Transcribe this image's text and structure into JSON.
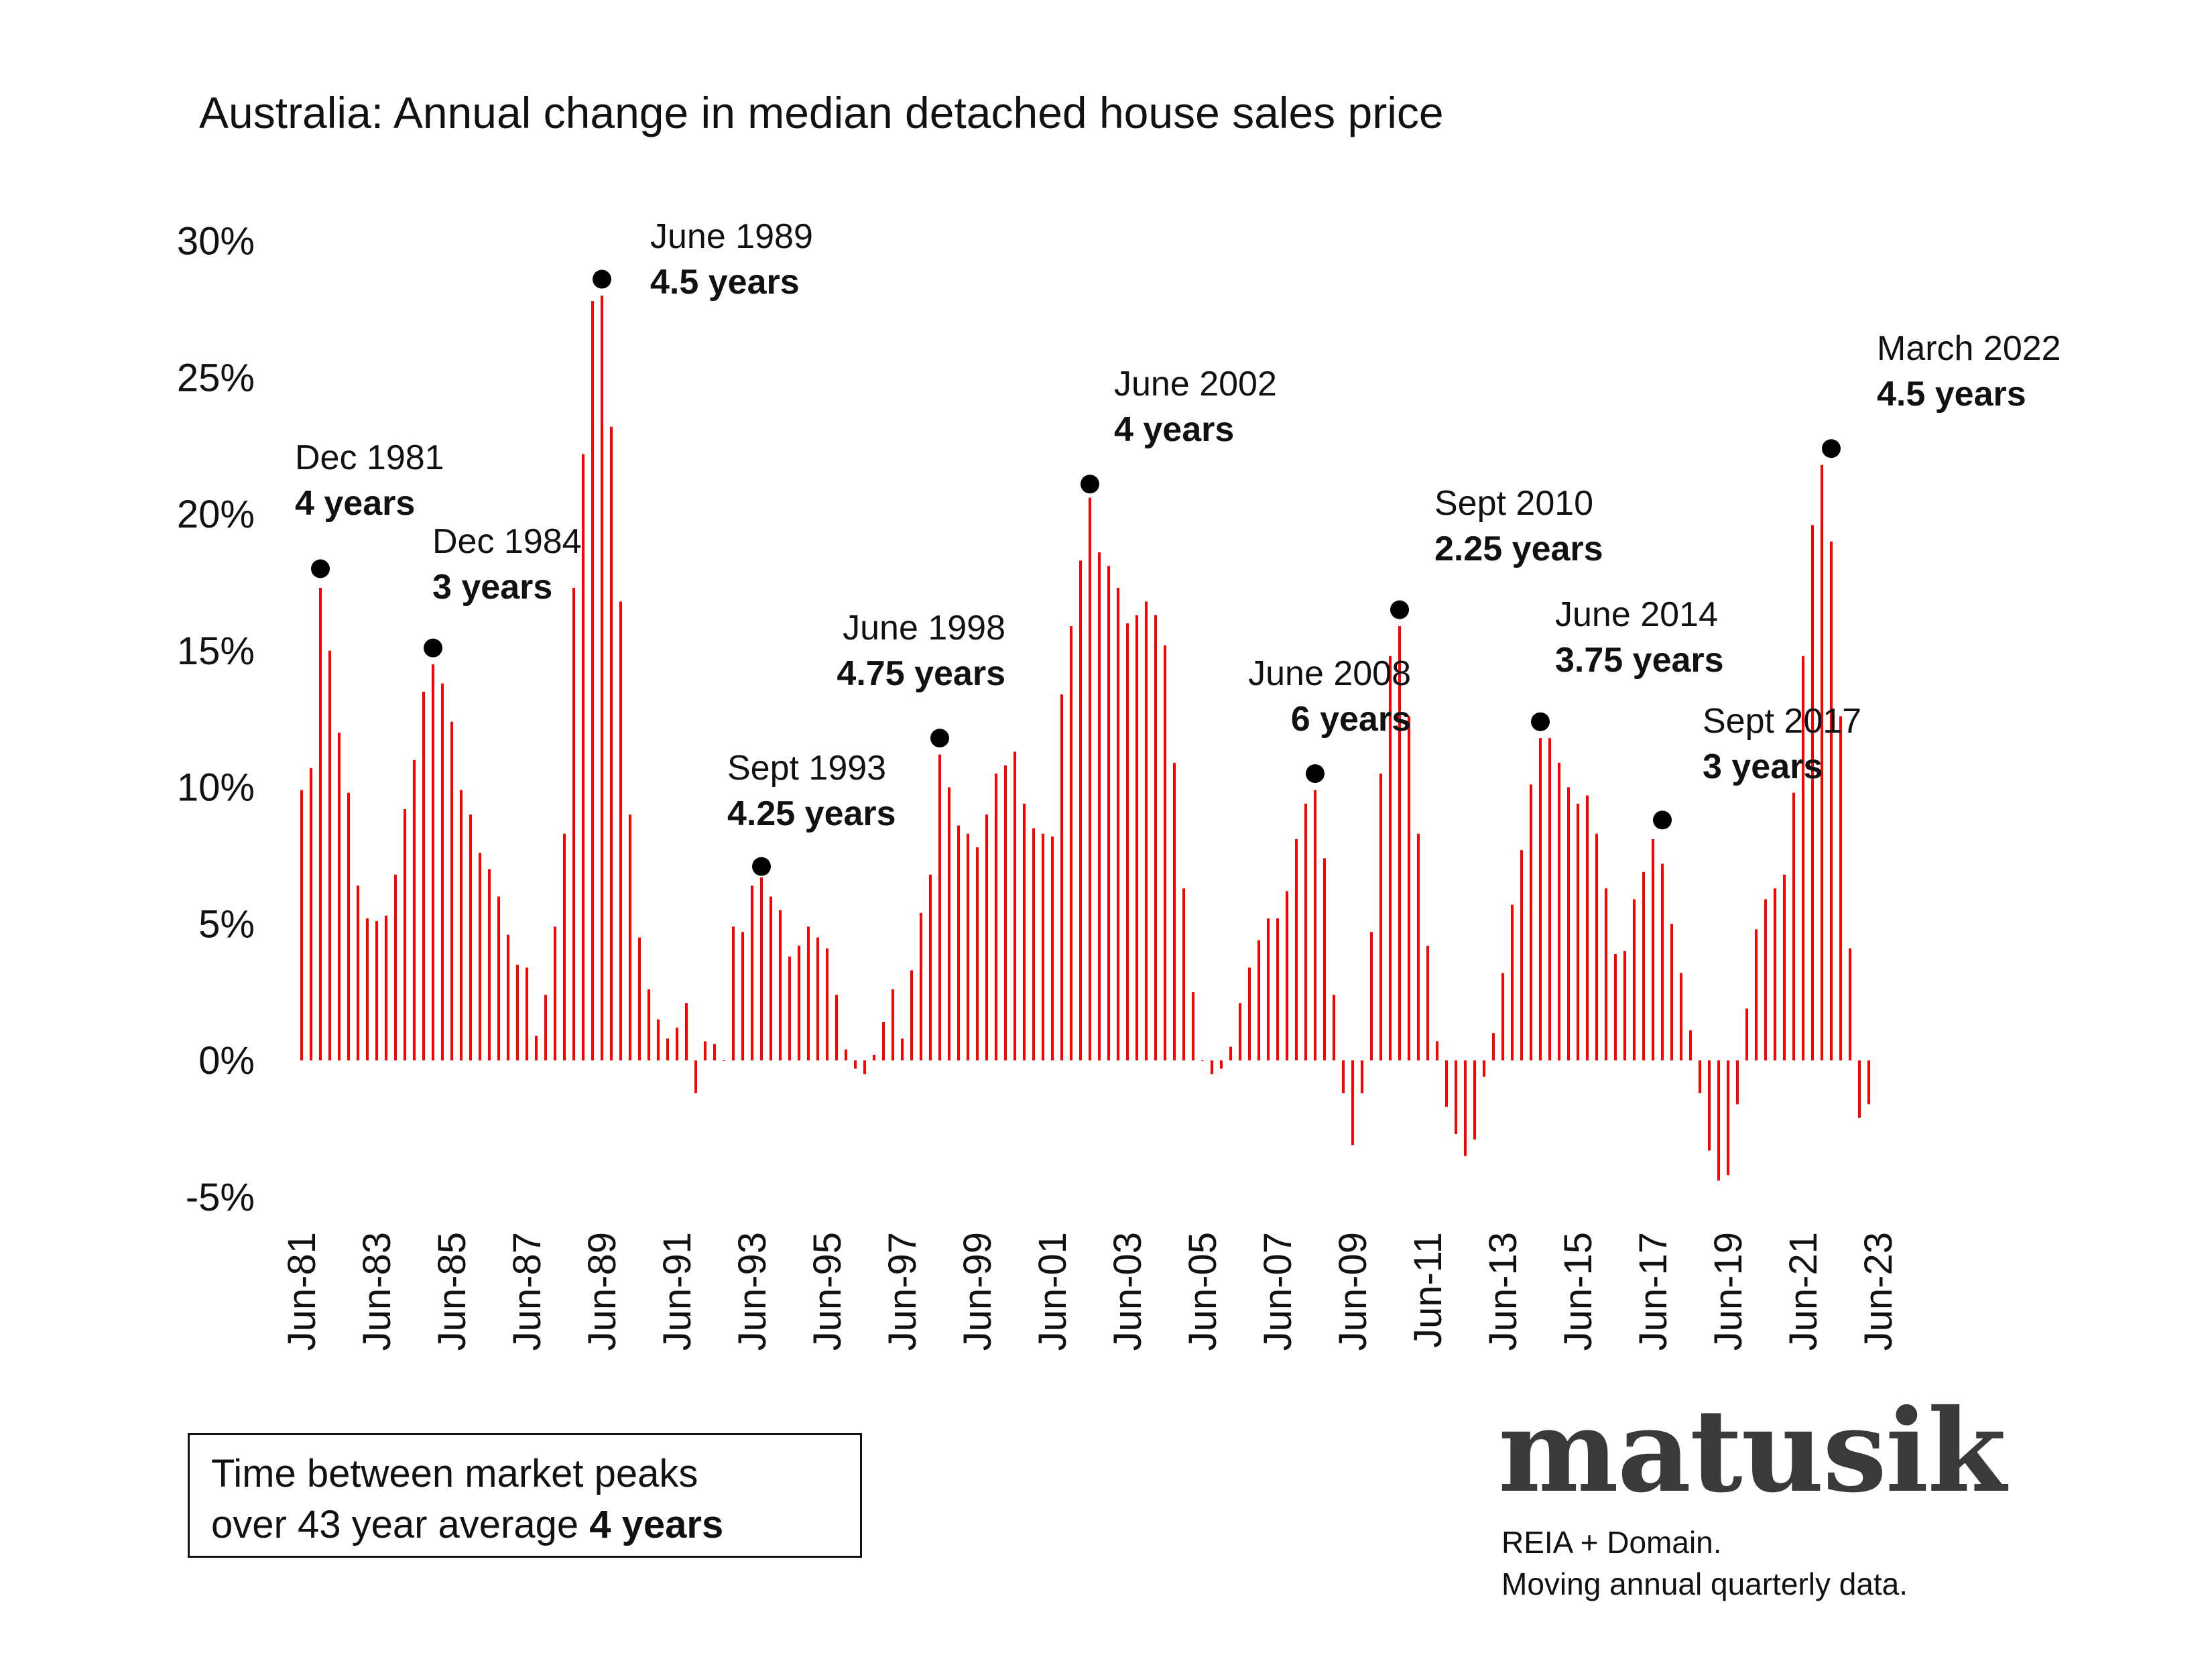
{
  "chart_data": {
    "type": "bar",
    "title": "Australia: Annual change in median detached house sales price",
    "xlabel": "",
    "ylabel": "",
    "ylim": [
      -5,
      30
    ],
    "yticks": [
      "30%",
      "25%",
      "20%",
      "15%",
      "10%",
      "5%",
      "0%",
      "-5%"
    ],
    "ytick_values": [
      30,
      25,
      20,
      15,
      10,
      5,
      0,
      -5
    ],
    "xticks": [
      "Jun-81",
      "Jun-83",
      "Jun-85",
      "Jun-87",
      "Jun-89",
      "Jun-91",
      "Jun-93",
      "Jun-95",
      "Jun-97",
      "Jun-99",
      "Jun-01",
      "Jun-03",
      "Jun-05",
      "Jun-07",
      "Jun-09",
      "Jun-11",
      "Jun-13",
      "Jun-15",
      "Jun-17",
      "Jun-19",
      "Jun-21",
      "Jun-23"
    ],
    "x_start": "Jun-81",
    "frequency": "quarterly",
    "series": [
      {
        "name": "Annual change",
        "color": "#ff0000",
        "values": [
          9.9,
          10.7,
          17.3,
          15.0,
          12.0,
          9.8,
          6.4,
          5.2,
          5.1,
          5.3,
          6.8,
          9.2,
          11.0,
          13.5,
          14.5,
          13.8,
          12.4,
          9.9,
          9.0,
          7.6,
          7.0,
          6.0,
          4.6,
          3.5,
          3.4,
          0.9,
          2.4,
          4.9,
          8.3,
          17.3,
          22.2,
          27.8,
          28.0,
          23.2,
          16.8,
          9.0,
          4.5,
          2.6,
          1.5,
          0.8,
          1.2,
          2.1,
          -1.2,
          0.7,
          0.6,
          0.0,
          4.9,
          4.7,
          6.4,
          6.7,
          6.0,
          5.5,
          3.8,
          4.2,
          4.9,
          4.5,
          4.1,
          2.4,
          0.4,
          -0.3,
          -0.5,
          0.2,
          1.4,
          2.6,
          0.8,
          3.3,
          5.4,
          6.8,
          11.2,
          10.0,
          8.6,
          8.3,
          7.8,
          9.0,
          10.5,
          10.8,
          11.3,
          9.4,
          8.5,
          8.3,
          8.2,
          13.4,
          15.9,
          18.3,
          20.6,
          18.6,
          18.1,
          17.3,
          16.0,
          16.3,
          16.8,
          16.3,
          15.2,
          10.9,
          6.3,
          2.5,
          0.0,
          -0.5,
          -0.3,
          0.5,
          2.1,
          3.4,
          4.4,
          5.2,
          5.2,
          6.2,
          8.1,
          9.4,
          9.9,
          7.4,
          2.4,
          -1.2,
          -3.1,
          -1.2,
          4.7,
          10.5,
          14.8,
          15.9,
          12.6,
          8.3,
          4.2,
          0.7,
          -1.7,
          -2.7,
          -3.5,
          -2.9,
          -0.6,
          1.0,
          3.2,
          5.7,
          7.7,
          10.1,
          11.8,
          11.8,
          10.9,
          10.0,
          9.4,
          9.7,
          8.3,
          6.3,
          3.9,
          4.0,
          5.9,
          6.9,
          8.1,
          7.2,
          5.0,
          3.2,
          1.1,
          -1.2,
          -3.3,
          -4.4,
          -4.2,
          -1.6,
          1.9,
          4.8,
          5.9,
          6.3,
          6.8,
          9.8,
          14.8,
          19.6,
          21.8,
          19.0,
          12.6,
          4.1,
          -2.1,
          -1.6
        ]
      }
    ],
    "annotations": [
      {
        "date": "Dec 1981",
        "duration": "4 years",
        "peak_index": 2,
        "peak_value": 18.0
      },
      {
        "date": "Dec 1984",
        "duration": "3 years",
        "peak_index": 14,
        "peak_value": 15.1
      },
      {
        "date": "June 1989",
        "duration": "4.5 years",
        "peak_index": 32,
        "peak_value": 28.6
      },
      {
        "date": "Sept 1993",
        "duration": "4.25 years",
        "peak_index": 49,
        "peak_value": 7.1
      },
      {
        "date": "June 1998",
        "duration": "4.75 years",
        "peak_index": 68,
        "peak_value": 11.8
      },
      {
        "date": "June 2002",
        "duration": "4 years",
        "peak_index": 84,
        "peak_value": 21.1
      },
      {
        "date": "June 2008",
        "duration": "6 years",
        "peak_index": 108,
        "peak_value": 10.5
      },
      {
        "date": "Sept 2010",
        "duration": "2.25 years",
        "peak_index": 117,
        "peak_value": 16.5
      },
      {
        "date": "June 2014",
        "duration": "3.75 years",
        "peak_index": 132,
        "peak_value": 12.4
      },
      {
        "date": "Sept 2017",
        "duration": "3 years",
        "peak_index": 145,
        "peak_value": 8.8
      },
      {
        "date": "March 2022",
        "duration": "4.5 years",
        "peak_index": 163,
        "peak_value": 22.4
      }
    ]
  },
  "summary": {
    "line1": "Time between market peaks",
    "line2_prefix": "over 43 year average ",
    "line2_bold": "4 years"
  },
  "brand": {
    "logo": "matusik",
    "source_line1": "REIA + Domain.",
    "source_line2": "Moving annual quarterly data."
  }
}
